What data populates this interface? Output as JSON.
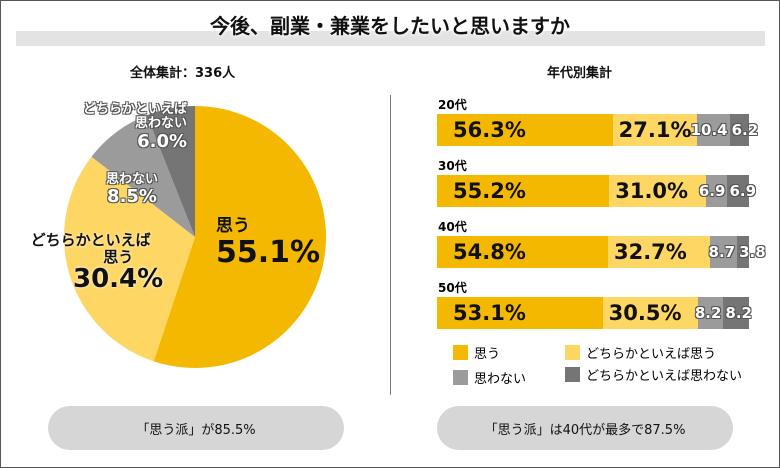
{
  "title": "今後、副業・兼業をしたいと思いますか",
  "colors": {
    "omou": "#F5B800",
    "dochira_omou": "#FDD663",
    "omowanai": "#9B9B9B",
    "dochira_omowanai": "#757575"
  },
  "chart_data": [
    {
      "type": "pie",
      "title": "全体集計：336人",
      "slices": [
        {
          "label": "思う",
          "value": 55.1,
          "display": "55.1%"
        },
        {
          "label": "どちらかといえば思う",
          "value": 30.4,
          "display": "30.4%"
        },
        {
          "label": "思わない",
          "value": 8.5,
          "display": "8.5%"
        },
        {
          "label": "どちらかといえば思わない",
          "value": 6.0,
          "display": "6.0%"
        }
      ]
    },
    {
      "type": "bar",
      "stacked": true,
      "orientation": "horizontal",
      "title": "年代別集計",
      "categories": [
        "20代",
        "30代",
        "40代",
        "50代"
      ],
      "series": [
        {
          "name": "思う",
          "values": [
            56.3,
            55.2,
            54.8,
            53.1
          ],
          "labels": [
            "56.3%",
            "55.2%",
            "54.8%",
            "53.1%"
          ]
        },
        {
          "name": "どちらかといえば思う",
          "values": [
            27.1,
            31.0,
            32.7,
            30.5
          ],
          "labels": [
            "27.1%",
            "31.0%",
            "32.7%",
            "30.5%"
          ]
        },
        {
          "name": "思わない",
          "values": [
            10.4,
            6.9,
            8.7,
            8.2
          ],
          "labels": [
            "10.4",
            "6.9",
            "8.7",
            "8.2"
          ]
        },
        {
          "name": "どちらかといえば思わない",
          "values": [
            6.2,
            6.9,
            3.8,
            8.2
          ],
          "labels": [
            "6.2",
            "6.9",
            "3.8",
            "8.2"
          ]
        }
      ],
      "legend": [
        "思う",
        "どちらかといえば思う",
        "思わない",
        "どちらかといえば思わない"
      ]
    }
  ],
  "pie_labels": {
    "omou": "思う",
    "dochira_omou_1": "どちらかといえば",
    "dochira_omou_2": "思う",
    "omowanai": "思わない",
    "dochira_omowanai_1": "どちらかといえば",
    "dochira_omowanai_2": "思わない"
  },
  "summary_left": "「思う派」が85.5%",
  "summary_right": "「思う派」は40代が最多で87.5%"
}
